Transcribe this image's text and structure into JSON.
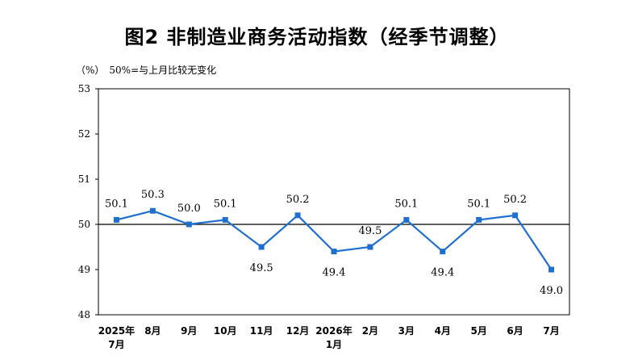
{
  "chart_data": {
    "type": "line",
    "title": "图2 非制造业商务活动指数（经季节调整）",
    "unit_note": "（%）　50%=与上月比较无变化",
    "categories": [
      [
        "2025年",
        "7月"
      ],
      [
        "8月"
      ],
      [
        "9月"
      ],
      [
        "10月"
      ],
      [
        "11月"
      ],
      [
        "12月"
      ],
      [
        "2026年",
        "1月"
      ],
      [
        "2月"
      ],
      [
        "3月"
      ],
      [
        "4月"
      ],
      [
        "5月"
      ],
      [
        "6月"
      ],
      [
        "7月"
      ]
    ],
    "series": [
      {
        "values": [
          50.1,
          50.3,
          50.0,
          50.1,
          49.5,
          50.2,
          49.4,
          49.5,
          50.1,
          49.4,
          50.1,
          50.2,
          49.0
        ],
        "labels": [
          "50.1",
          "50.3",
          "50.0",
          "50.1",
          "49.5",
          "50.2",
          "49.4",
          "49.5",
          "50.1",
          "49.4",
          "50.1",
          "50.2",
          "49.0"
        ],
        "label_position": [
          "above",
          "above",
          "above",
          "above",
          "below",
          "above",
          "below",
          "above",
          "above",
          "below",
          "above",
          "above",
          "below"
        ],
        "color": "#1f6fcf"
      }
    ],
    "ylim": [
      48,
      53
    ],
    "yticks": [
      48,
      49,
      50,
      51,
      52,
      53
    ],
    "reference_line": 50,
    "grid": false,
    "legend": "none"
  }
}
